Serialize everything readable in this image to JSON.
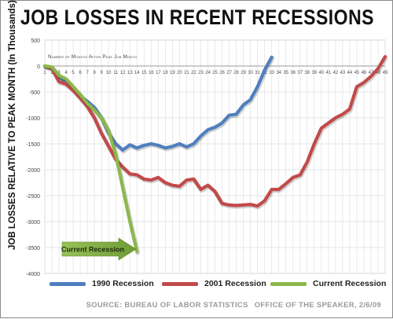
{
  "title": "JOB LOSSES IN RECENT RECESSIONS",
  "source": "SOURCE: BUREAU OF LABOR STATISTICS",
  "office": "OFFICE OF THE SPEAKER, 2/6/09",
  "arrow_label": "Current Recession",
  "chart_data": {
    "type": "line",
    "title": "JOB LOSSES IN RECENT RECESSIONS",
    "xlabel": "Number of Months After Peak Job Month",
    "ylabel": "JOB LOSSES RELATIVE TO PEAK MONTH (In Thousands)",
    "xlim": [
      1,
      49
    ],
    "ylim": [
      -4000,
      500
    ],
    "x_ticks": [
      1,
      2,
      3,
      4,
      5,
      6,
      7,
      8,
      9,
      10,
      11,
      12,
      13,
      14,
      15,
      16,
      17,
      18,
      19,
      20,
      21,
      22,
      23,
      24,
      25,
      26,
      27,
      28,
      29,
      30,
      31,
      32,
      33,
      34,
      35,
      36,
      37,
      38,
      39,
      40,
      41,
      42,
      43,
      44,
      45,
      46,
      47,
      48,
      49
    ],
    "y_ticks": [
      500,
      0,
      -500,
      -1000,
      -1500,
      -2000,
      -2500,
      -3000,
      -3500,
      -4000
    ],
    "grid": true,
    "legend_position": "bottom",
    "series": [
      {
        "name": "1990 Recession",
        "color": "#4f7fbe",
        "x": [
          1,
          2,
          3,
          4,
          5,
          6,
          7,
          8,
          9,
          10,
          11,
          12,
          13,
          14,
          15,
          16,
          17,
          18,
          19,
          20,
          21,
          22,
          23,
          24,
          25,
          26,
          27,
          28,
          29,
          30,
          31,
          32,
          33
        ],
        "values": [
          0,
          -30,
          -200,
          -320,
          -450,
          -580,
          -680,
          -800,
          -1000,
          -1300,
          -1500,
          -1620,
          -1520,
          -1580,
          -1530,
          -1500,
          -1530,
          -1580,
          -1550,
          -1500,
          -1560,
          -1500,
          -1350,
          -1230,
          -1180,
          -1100,
          -950,
          -930,
          -750,
          -650,
          -400,
          -80,
          170
        ]
      },
      {
        "name": "2001 Recession",
        "color": "#c24a4a",
        "x": [
          1,
          2,
          3,
          4,
          5,
          6,
          7,
          8,
          9,
          10,
          11,
          12,
          13,
          14,
          15,
          16,
          17,
          18,
          19,
          20,
          21,
          22,
          23,
          24,
          25,
          26,
          27,
          28,
          29,
          30,
          31,
          32,
          33,
          34,
          35,
          36,
          37,
          38,
          39,
          40,
          41,
          42,
          43,
          44,
          45,
          46,
          47,
          48,
          49
        ],
        "values": [
          0,
          -50,
          -300,
          -350,
          -470,
          -620,
          -780,
          -1000,
          -1300,
          -1550,
          -1800,
          -1950,
          -2080,
          -2100,
          -2180,
          -2200,
          -2150,
          -2250,
          -2300,
          -2320,
          -2200,
          -2180,
          -2380,
          -2300,
          -2420,
          -2650,
          -2680,
          -2690,
          -2680,
          -2670,
          -2700,
          -2600,
          -2380,
          -2380,
          -2270,
          -2150,
          -2100,
          -1850,
          -1500,
          -1200,
          -1100,
          -1000,
          -930,
          -830,
          -400,
          -320,
          -200,
          -50,
          180
        ]
      },
      {
        "name": "Current Recession",
        "color": "#8cb84a",
        "x": [
          1,
          2,
          3,
          4,
          5,
          6,
          7,
          8,
          9,
          10,
          11,
          12,
          13,
          14
        ],
        "values": [
          0,
          -20,
          -180,
          -250,
          -400,
          -550,
          -720,
          -850,
          -1000,
          -1250,
          -1700,
          -2350,
          -3000,
          -3580
        ]
      }
    ]
  }
}
